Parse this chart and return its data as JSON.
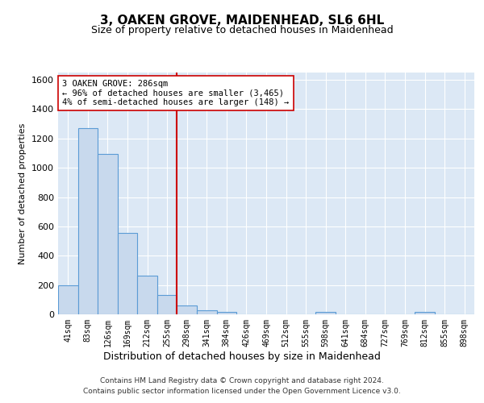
{
  "title": "3, OAKEN GROVE, MAIDENHEAD, SL6 6HL",
  "subtitle": "Size of property relative to detached houses in Maidenhead",
  "xlabel": "Distribution of detached houses by size in Maidenhead",
  "ylabel": "Number of detached properties",
  "bar_labels": [
    "41sqm",
    "83sqm",
    "126sqm",
    "169sqm",
    "212sqm",
    "255sqm",
    "298sqm",
    "341sqm",
    "384sqm",
    "426sqm",
    "469sqm",
    "512sqm",
    "555sqm",
    "598sqm",
    "641sqm",
    "684sqm",
    "727sqm",
    "769sqm",
    "812sqm",
    "855sqm",
    "898sqm"
  ],
  "bar_values": [
    200,
    1270,
    1095,
    555,
    265,
    130,
    60,
    30,
    18,
    0,
    0,
    0,
    0,
    15,
    0,
    0,
    0,
    0,
    15,
    0,
    0
  ],
  "bar_color": "#c8d9ed",
  "bar_edge_color": "#5b9bd5",
  "background_color": "#dce8f5",
  "fig_background_color": "#ffffff",
  "grid_color": "#ffffff",
  "vline_x_index": 6,
  "vline_color": "#cc0000",
  "annotation_text": "3 OAKEN GROVE: 286sqm\n← 96% of detached houses are smaller (3,465)\n4% of semi-detached houses are larger (148) →",
  "annotation_box_facecolor": "#ffffff",
  "annotation_box_edgecolor": "#cc0000",
  "ylim": [
    0,
    1650
  ],
  "yticks": [
    0,
    200,
    400,
    600,
    800,
    1000,
    1200,
    1400,
    1600
  ],
  "footer_line1": "Contains HM Land Registry data © Crown copyright and database right 2024.",
  "footer_line2": "Contains public sector information licensed under the Open Government Licence v3.0."
}
